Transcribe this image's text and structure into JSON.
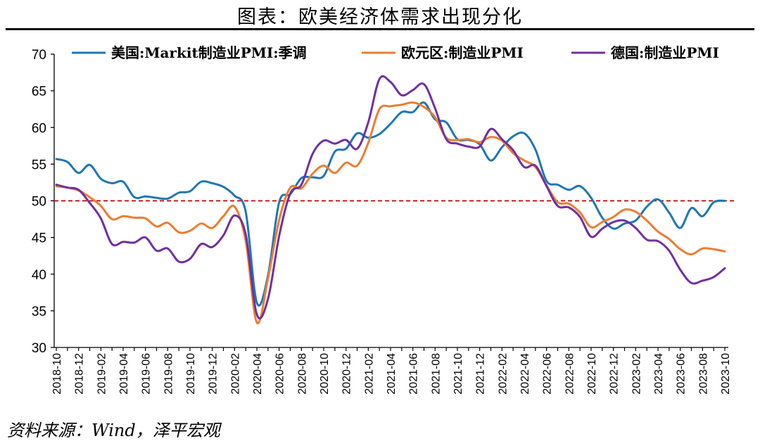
{
  "title": "图表：欧美经济体需求出现分化",
  "source": "资料来源：Wind，泽平宏观",
  "chart_data": {
    "type": "line",
    "title": "图表：欧美经济体需求出现分化",
    "xlabel": "",
    "ylabel": "",
    "ylim": [
      30,
      70
    ],
    "yticks": [
      30,
      35,
      40,
      45,
      50,
      55,
      60,
      65,
      70
    ],
    "grid": false,
    "legend_position": "top",
    "x_tick_labels": [
      "2018-10",
      "2018-12",
      "2019-02",
      "2019-04",
      "2019-06",
      "2019-08",
      "2019-10",
      "2019-12",
      "2020-02",
      "2020-04",
      "2020-06",
      "2020-08",
      "2020-10",
      "2020-12",
      "2021-02",
      "2021-04",
      "2021-06",
      "2021-08",
      "2021-10",
      "2021-12",
      "2022-02",
      "2022-04",
      "2022-06",
      "2022-08",
      "2022-10",
      "2022-12",
      "2023-02",
      "2023-04",
      "2023-06",
      "2023-08",
      "2023-10"
    ],
    "x": [
      "2018-10",
      "2018-11",
      "2018-12",
      "2019-01",
      "2019-02",
      "2019-03",
      "2019-04",
      "2019-05",
      "2019-06",
      "2019-07",
      "2019-08",
      "2019-09",
      "2019-10",
      "2019-11",
      "2019-12",
      "2020-01",
      "2020-02",
      "2020-03",
      "2020-04",
      "2020-05",
      "2020-06",
      "2020-07",
      "2020-08",
      "2020-09",
      "2020-10",
      "2020-11",
      "2020-12",
      "2021-01",
      "2021-02",
      "2021-03",
      "2021-04",
      "2021-05",
      "2021-06",
      "2021-07",
      "2021-08",
      "2021-09",
      "2021-10",
      "2021-11",
      "2021-12",
      "2022-01",
      "2022-02",
      "2022-03",
      "2022-04",
      "2022-05",
      "2022-06",
      "2022-07",
      "2022-08",
      "2022-09",
      "2022-10",
      "2022-11",
      "2022-12",
      "2023-01",
      "2023-02",
      "2023-03",
      "2023-04",
      "2023-05",
      "2023-06",
      "2023-07",
      "2023-08",
      "2023-09",
      "2023-10"
    ],
    "reference_line": {
      "value": 50,
      "color": "#C00000",
      "style": "dashed"
    },
    "series": [
      {
        "name": "美国:Markit制造业PMI:季调",
        "color": "#1F77B4",
        "values": [
          55.7,
          55.3,
          53.8,
          54.9,
          53.0,
          52.4,
          52.6,
          50.5,
          50.6,
          50.4,
          50.3,
          51.1,
          51.3,
          52.6,
          52.4,
          51.9,
          50.7,
          48.5,
          36.1,
          39.8,
          49.8,
          50.9,
          53.1,
          53.2,
          53.4,
          56.7,
          57.1,
          59.2,
          58.6,
          59.1,
          60.5,
          62.1,
          62.1,
          63.4,
          61.1,
          60.7,
          58.4,
          58.3,
          57.7,
          55.5,
          57.3,
          58.8,
          59.2,
          57.0,
          52.7,
          52.2,
          51.5,
          52.0,
          50.4,
          47.7,
          46.2,
          46.9,
          47.3,
          49.2,
          50.2,
          48.4,
          46.3,
          49.0,
          47.9,
          49.8,
          50.0
        ]
      },
      {
        "name": "欧元区:制造业PMI",
        "color": "#ED7D31",
        "values": [
          52.0,
          51.8,
          51.4,
          50.5,
          49.3,
          47.5,
          47.9,
          47.7,
          47.6,
          46.5,
          47.0,
          45.7,
          45.9,
          46.9,
          46.3,
          47.9,
          49.2,
          44.5,
          33.4,
          39.4,
          47.4,
          51.8,
          51.7,
          53.7,
          54.8,
          53.8,
          55.2,
          54.8,
          57.9,
          62.5,
          62.9,
          63.1,
          63.4,
          62.8,
          61.4,
          58.6,
          58.3,
          58.4,
          58.0,
          58.7,
          58.2,
          56.5,
          55.5,
          54.6,
          52.1,
          49.8,
          49.6,
          48.4,
          46.4,
          47.1,
          47.8,
          48.8,
          48.5,
          47.3,
          45.8,
          44.8,
          43.4,
          42.7,
          43.5,
          43.4,
          43.1
        ]
      },
      {
        "name": "德国:制造业PMI",
        "color": "#7030A0",
        "values": [
          52.2,
          51.8,
          51.5,
          49.7,
          47.6,
          44.1,
          44.4,
          44.3,
          45.0,
          43.2,
          43.5,
          41.7,
          42.1,
          44.1,
          43.7,
          45.3,
          48.0,
          45.4,
          34.5,
          36.6,
          45.2,
          51.0,
          52.2,
          56.4,
          58.2,
          57.8,
          58.3,
          57.1,
          60.7,
          66.6,
          66.2,
          64.4,
          65.1,
          65.9,
          62.6,
          58.4,
          57.8,
          57.4,
          57.4,
          59.8,
          58.4,
          56.9,
          54.6,
          54.8,
          52.0,
          49.3,
          49.1,
          47.8,
          45.1,
          46.2,
          47.1,
          47.3,
          46.3,
          44.7,
          44.5,
          43.2,
          40.6,
          38.8,
          39.1,
          39.6,
          40.8
        ]
      }
    ]
  }
}
